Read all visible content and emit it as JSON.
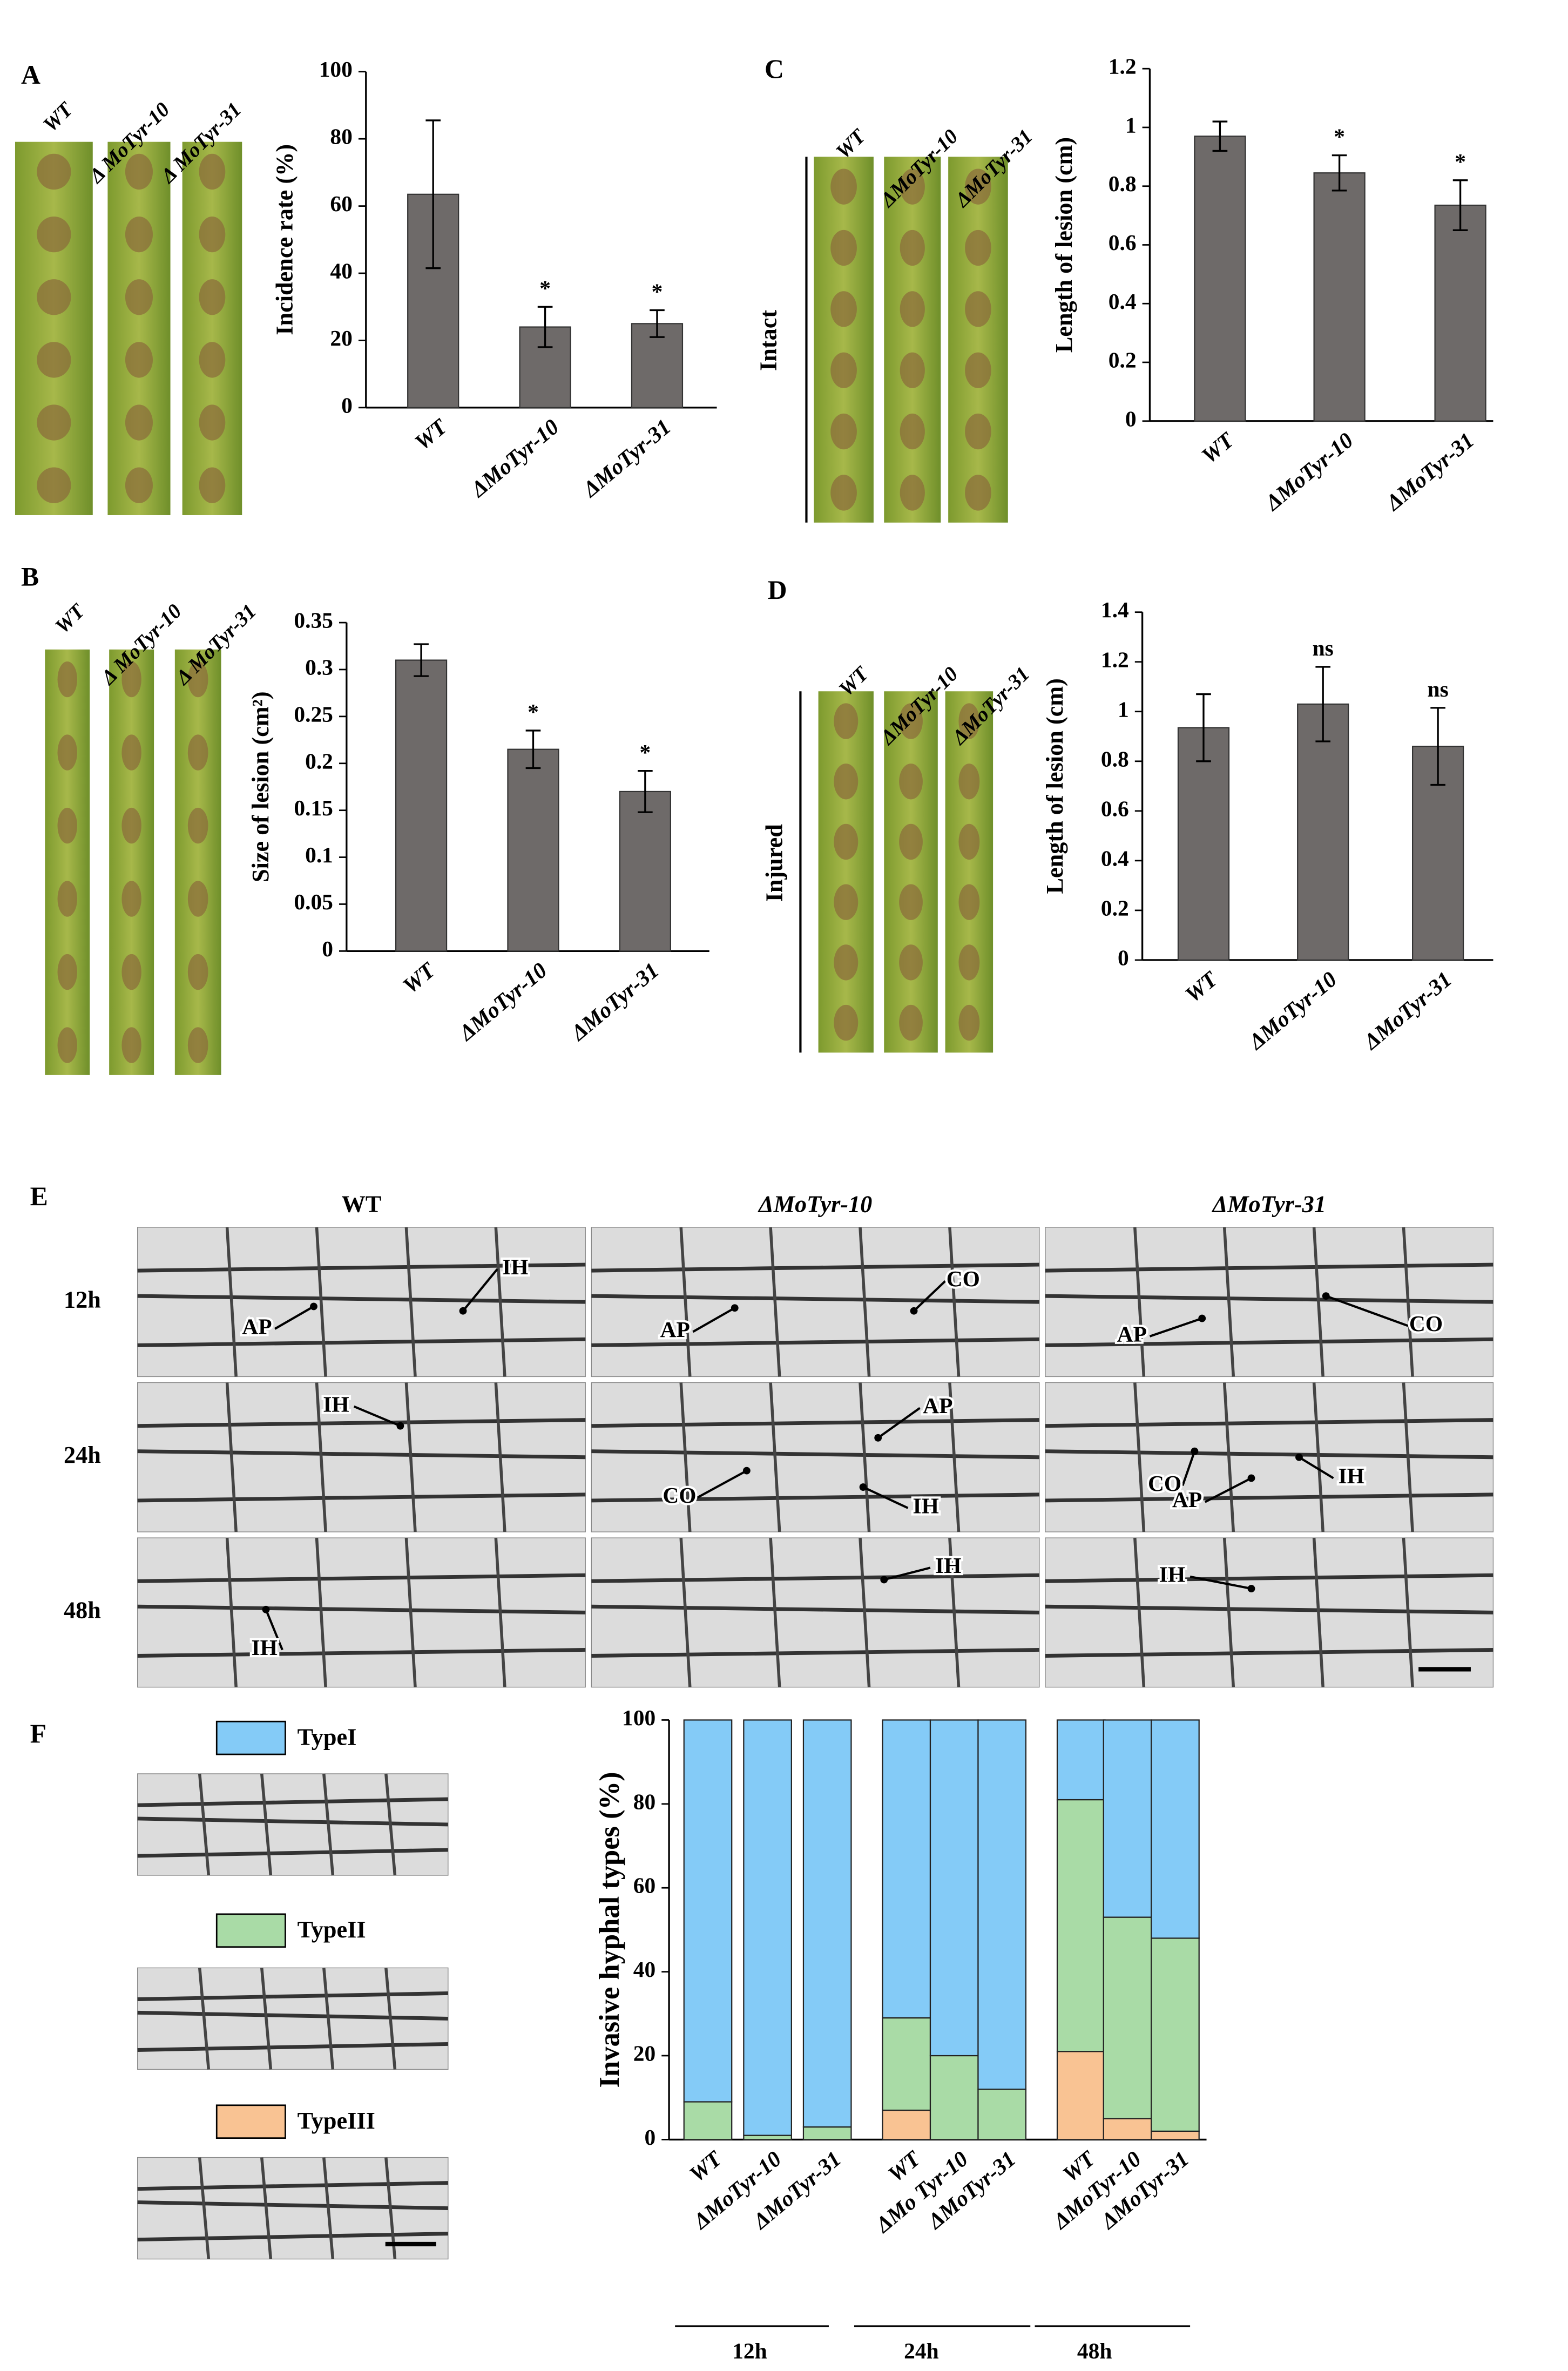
{
  "chart_data": [
    {
      "type": "bar",
      "panel": "A",
      "photo_labels": [
        "WT",
        "Δ MoTyr-10",
        "Δ MoTyr-31"
      ],
      "categories": [
        "WT",
        "ΔMoTyr-10",
        "ΔMoTyr-31"
      ],
      "values": [
        63.5,
        24,
        25
      ],
      "errors": [
        22,
        6,
        4
      ],
      "annotations": [
        null,
        "*",
        "*"
      ],
      "color": "#6e6a69",
      "y_label": "Incidence rate (%)",
      "ylim": [
        0,
        100
      ],
      "yticks": [
        0,
        20,
        40,
        60,
        80,
        100
      ]
    },
    {
      "type": "bar",
      "panel": "B",
      "photo_labels": [
        "WT",
        "Δ MoTyr-10",
        "Δ MoTyr-31"
      ],
      "categories": [
        "WT",
        "ΔMoTyr-10",
        "ΔMoTyr-31"
      ],
      "values": [
        0.31,
        0.215,
        0.17
      ],
      "errors": [
        0.017,
        0.02,
        0.022
      ],
      "annotations": [
        null,
        "*",
        "*"
      ],
      "color": "#6e6a69",
      "y_label": "Size of lesion  (cm²)",
      "ylim": [
        0,
        0.35
      ],
      "yticks": [
        0,
        0.05,
        0.1,
        0.15,
        0.2,
        0.25,
        0.3,
        0.35
      ]
    },
    {
      "type": "bar",
      "panel": "C",
      "photo_labels": [
        "WT",
        "ΔMoTyr-10",
        "ΔMoTyr-31"
      ],
      "condition": "Intact",
      "categories": [
        "WT",
        "ΔMoTyr-10",
        "ΔMoTyr-31"
      ],
      "values": [
        0.97,
        0.845,
        0.735
      ],
      "errors": [
        0.05,
        0.06,
        0.085
      ],
      "annotations": [
        null,
        "*",
        "*"
      ],
      "color": "#6e6a69",
      "y_label": "Length of  lesion (cm)",
      "ylim": [
        0,
        1.2
      ],
      "yticks": [
        0,
        0.2,
        0.4,
        0.6,
        0.8,
        1,
        1.2
      ]
    },
    {
      "type": "bar",
      "panel": "D",
      "photo_labels": [
        "WT",
        "ΔMoTyr-10",
        "ΔMoTyr-31"
      ],
      "condition": "Injured",
      "categories": [
        "WT",
        "ΔMoTyr-10",
        "ΔMoTyr-31"
      ],
      "values": [
        0.935,
        1.03,
        0.86
      ],
      "errors": [
        0.135,
        0.15,
        0.155
      ],
      "annotations": [
        null,
        "ns",
        "ns"
      ],
      "color": "#6e6a69",
      "y_label": "Length of lesion (cm)",
      "ylim": [
        0,
        1.4
      ],
      "yticks": [
        0,
        0.2,
        0.4,
        0.6,
        0.8,
        1,
        1.2,
        1.4
      ]
    },
    {
      "type": "stacked_bar",
      "panel": "F",
      "y_label": "Invasive hyphal types (%)",
      "categories": [
        "WT",
        "ΔMoTyr-10",
        "ΔMoTyr-31",
        "WT",
        "ΔMo Tyr-10",
        "ΔMoTyr-31",
        "WT",
        "ΔMoTyr-10",
        "ΔMoTyr-31"
      ],
      "group_labels": [
        "12h",
        "24h",
        "48h"
      ],
      "series": [
        {
          "name": "TypeI",
          "color": "#84cbf7",
          "values": [
            91,
            99,
            97,
            71,
            80,
            88,
            19,
            47,
            52
          ]
        },
        {
          "name": "TypeII",
          "color": "#a9dba6",
          "values": [
            9,
            1,
            3,
            22,
            20,
            12,
            60,
            48,
            46
          ]
        },
        {
          "name": "TypeIII",
          "color": "#f9c393",
          "values": [
            0,
            0,
            0,
            7,
            0,
            0,
            21,
            5,
            2
          ]
        }
      ],
      "ylim": [
        0,
        100
      ],
      "yticks": [
        0,
        20,
        40,
        60,
        80,
        100
      ]
    }
  ],
  "panel_e": {
    "panel": "E",
    "columns": [
      "WT",
      "ΔMoTyr-10",
      "ΔMoTyr-31"
    ],
    "rows": [
      "12h",
      "24h",
      "48h"
    ],
    "cells": [
      [
        [
          "AP",
          "IH"
        ],
        [
          "AP",
          "CO"
        ],
        [
          "AP",
          "CO"
        ]
      ],
      [
        [
          "IH"
        ],
        [
          "AP",
          "CO",
          "IH"
        ],
        [
          "CO",
          "AP",
          "IH"
        ]
      ],
      [
        [
          "IH"
        ],
        [
          "IH"
        ],
        [
          "IH"
        ]
      ]
    ]
  }
}
